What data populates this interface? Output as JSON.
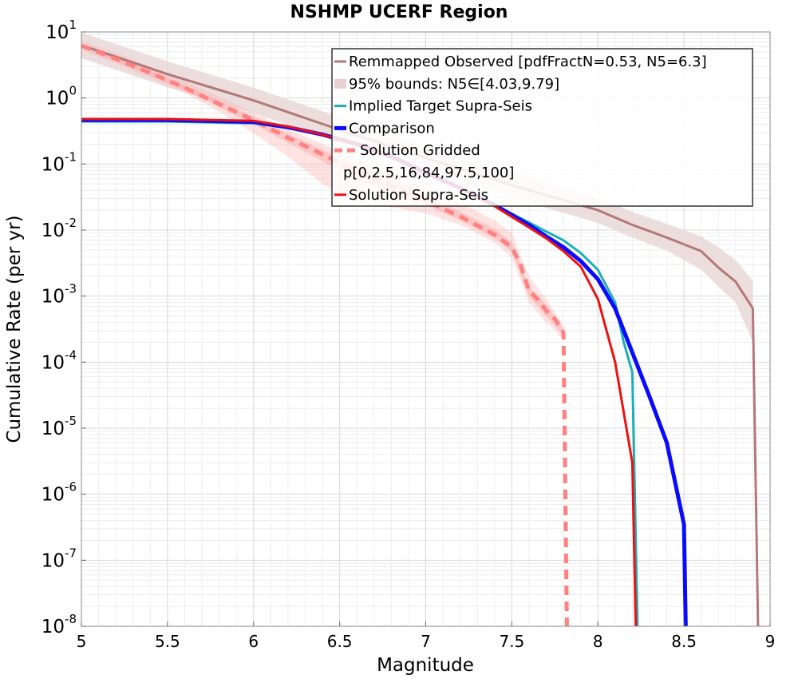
{
  "chart_data": {
    "type": "line",
    "title": "NSHMP UCERF Region",
    "xlabel": "Magnitude",
    "ylabel": "Cumulative Rate (per yr)",
    "xlim": [
      5,
      9
    ],
    "ylim": [
      1e-08,
      10
    ],
    "y_scale": "log",
    "grid": true,
    "legend_position": "top-right",
    "x_ticks": [
      "5",
      "5.5",
      "6",
      "6.5",
      "7",
      "7.5",
      "8",
      "8.5",
      "9"
    ],
    "y_ticks": [
      {
        "base": "10",
        "exp": "1"
      },
      {
        "base": "10",
        "exp": "0"
      },
      {
        "base": "10",
        "exp": "-1"
      },
      {
        "base": "10",
        "exp": "-2"
      },
      {
        "base": "10",
        "exp": "-3"
      },
      {
        "base": "10",
        "exp": "-4"
      },
      {
        "base": "10",
        "exp": "-5"
      },
      {
        "base": "10",
        "exp": "-6"
      },
      {
        "base": "10",
        "exp": "-7"
      },
      {
        "base": "10",
        "exp": "-8"
      }
    ],
    "legend": [
      {
        "label": "Remmapped Observed [pdfFractN=0.53, N5=6.3]",
        "style": "line",
        "color": "#b57878"
      },
      {
        "label": "95% bounds: N5∈[4.03,9.79]",
        "style": "band",
        "color": "#e8d0d0"
      },
      {
        "label": "Implied Target Supra-Seis",
        "style": "line",
        "color": "#18b0b8"
      },
      {
        "label": "Comparison",
        "style": "thick",
        "color": "#0a0aff"
      },
      {
        "label": "Solution Gridded",
        "style": "dashed",
        "color": "#ff8080"
      },
      {
        "label": "p[0,2.5,16,84,97.5,100]",
        "style": "none",
        "color": ""
      },
      {
        "label": "Solution Supra-Seis",
        "style": "line",
        "color": "#ee1010"
      }
    ],
    "series": [
      {
        "name": "Remmapped Observed [pdfFractN=0.53, N5=6.3]",
        "style": "line",
        "color": "#b57878",
        "x": [
          5.0,
          5.5,
          6.0,
          6.5,
          7.0,
          7.5,
          8.0,
          8.2,
          8.4,
          8.6,
          8.7,
          8.8,
          8.9,
          8.93
        ],
        "y": [
          6.3,
          2.3,
          0.92,
          0.33,
          0.124,
          0.048,
          0.02,
          0.012,
          0.0077,
          0.0048,
          0.0027,
          0.00165,
          0.00065,
          1e-08
        ]
      },
      {
        "name": "95% bounds: N5∈[4.03,9.79]",
        "style": "band",
        "color": "#ead8d8",
        "x": [
          5.0,
          5.5,
          6.0,
          6.5,
          7.0,
          7.5,
          8.0,
          8.2,
          8.4,
          8.6,
          8.7,
          8.8,
          8.9
        ],
        "lower": [
          4.03,
          1.45,
          0.59,
          0.21,
          0.079,
          0.031,
          0.0128,
          0.0077,
          0.0049,
          0.0025,
          0.0014,
          0.0008,
          0.0002
        ],
        "upper": [
          9.79,
          3.6,
          1.43,
          0.51,
          0.19,
          0.075,
          0.031,
          0.0188,
          0.0125,
          0.008,
          0.0055,
          0.0035,
          0.0017
        ]
      },
      {
        "name": "Implied Target Supra-Seis",
        "style": "line",
        "color": "#18b0b8",
        "x": [
          5.0,
          5.5,
          6.0,
          6.2,
          6.4,
          6.6,
          6.8,
          7.0,
          7.2,
          7.4,
          7.6,
          7.7,
          7.8,
          7.9,
          8.0,
          8.1,
          8.15,
          8.2,
          8.23
        ],
        "y": [
          0.44,
          0.44,
          0.415,
          0.35,
          0.28,
          0.2,
          0.13,
          0.074,
          0.043,
          0.024,
          0.013,
          0.0095,
          0.007,
          0.0045,
          0.0025,
          0.0008,
          0.0002,
          7e-05,
          1e-08
        ]
      },
      {
        "name": "Comparison",
        "style": "thick",
        "color": "#0a0aff",
        "x": [
          5.0,
          5.5,
          6.0,
          6.2,
          6.4,
          6.6,
          6.8,
          7.0,
          7.2,
          7.4,
          7.6,
          7.7,
          7.8,
          7.9,
          8.0,
          8.1,
          8.2,
          8.3,
          8.4,
          8.5,
          8.51
        ],
        "y": [
          0.465,
          0.463,
          0.435,
          0.36,
          0.28,
          0.2,
          0.13,
          0.074,
          0.043,
          0.024,
          0.012,
          0.008,
          0.0055,
          0.0034,
          0.0018,
          0.00065,
          0.00014,
          3e-05,
          6e-06,
          3.5e-07,
          1e-08
        ]
      },
      {
        "name": "Solution Gridded",
        "style": "dashed",
        "color": "#ff8080",
        "x": [
          5.0,
          5.2,
          5.4,
          5.6,
          5.8,
          6.0,
          6.2,
          6.4,
          6.6,
          6.8,
          7.0,
          7.2,
          7.4,
          7.5,
          7.55,
          7.6,
          7.65,
          7.7,
          7.75,
          7.8,
          7.82
        ],
        "y": [
          6.2,
          3.9,
          2.4,
          1.43,
          0.81,
          0.46,
          0.25,
          0.14,
          0.078,
          0.046,
          0.028,
          0.016,
          0.0085,
          0.0055,
          0.003,
          0.0012,
          0.0009,
          0.0006,
          0.00045,
          0.00028,
          1e-08
        ],
        "band_outer": {
          "x": [
            5.0,
            5.2,
            5.4,
            5.6,
            5.8,
            6.0,
            6.2,
            6.4,
            6.6,
            6.8,
            7.0,
            7.2,
            7.4,
            7.5,
            7.6,
            7.7,
            7.8
          ],
          "lower": [
            5.3,
            3.3,
            2.0,
            1.2,
            0.62,
            0.29,
            0.13,
            0.05,
            0.026,
            0.022,
            0.018,
            0.012,
            0.0065,
            0.0038,
            0.0008,
            0.0004,
            0.00022
          ],
          "upper": [
            7.5,
            4.8,
            3.0,
            1.8,
            1.05,
            0.6,
            0.34,
            0.2,
            0.12,
            0.072,
            0.044,
            0.026,
            0.014,
            0.009,
            0.002,
            0.0009,
            0.00036
          ]
        },
        "band_inner": {
          "x": [
            5.0,
            5.2,
            5.4,
            5.6,
            5.8,
            6.0,
            6.2,
            6.4,
            6.6,
            6.8,
            7.0,
            7.2,
            7.4,
            7.5,
            7.6,
            7.7,
            7.8
          ],
          "lower": [
            5.8,
            3.6,
            2.2,
            1.32,
            0.73,
            0.4,
            0.21,
            0.11,
            0.06,
            0.037,
            0.024,
            0.014,
            0.0075,
            0.0047,
            0.001,
            0.0005,
            0.00025
          ],
          "upper": [
            6.7,
            4.2,
            2.6,
            1.55,
            0.9,
            0.52,
            0.29,
            0.165,
            0.095,
            0.056,
            0.034,
            0.019,
            0.0105,
            0.0065,
            0.0014,
            0.00075,
            0.00032
          ]
        }
      },
      {
        "name": "Solution Supra-Seis",
        "style": "line",
        "color": "#ee1010",
        "x": [
          5.0,
          5.5,
          6.0,
          6.2,
          6.4,
          6.6,
          6.8,
          7.0,
          7.2,
          7.4,
          7.6,
          7.7,
          7.8,
          7.9,
          8.0,
          8.1,
          8.2,
          8.22
        ],
        "y": [
          0.48,
          0.48,
          0.45,
          0.37,
          0.28,
          0.2,
          0.13,
          0.074,
          0.042,
          0.023,
          0.011,
          0.0075,
          0.0048,
          0.0028,
          0.0009,
          0.0001,
          3e-06,
          1e-08
        ]
      }
    ]
  }
}
